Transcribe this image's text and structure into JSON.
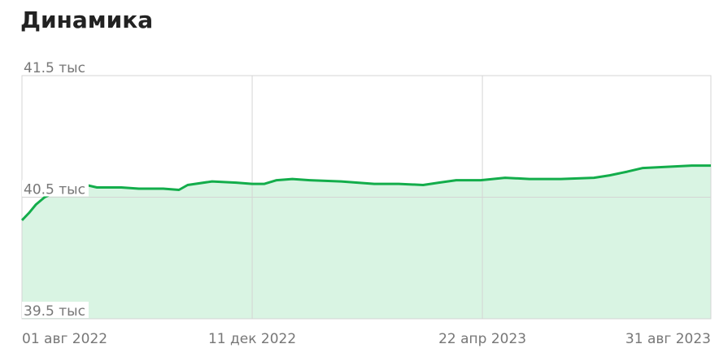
{
  "chart_data": {
    "type": "area",
    "title": "Динамика",
    "x": [
      "2022-08-01",
      "2022-08-05",
      "2022-08-09",
      "2022-08-14",
      "2022-08-23",
      "2022-09-04",
      "2022-09-13",
      "2022-09-27",
      "2022-10-07",
      "2022-10-21",
      "2022-10-30",
      "2022-11-04",
      "2022-11-18",
      "2022-12-02",
      "2022-12-11",
      "2022-12-18",
      "2022-12-25",
      "2023-01-03",
      "2023-01-13",
      "2023-01-31",
      "2023-02-19",
      "2023-03-05",
      "2023-03-19",
      "2023-03-28",
      "2023-04-07",
      "2023-04-21",
      "2023-05-05",
      "2023-05-19",
      "2023-06-06",
      "2023-06-25",
      "2023-07-04",
      "2023-07-14",
      "2023-07-23",
      "2023-08-06",
      "2023-08-20",
      "2023-08-31"
    ],
    "series": [
      {
        "color": "#13ad4b",
        "fill": "#d9f4e3",
        "values": [
          40.31,
          40.37,
          40.44,
          40.5,
          40.56,
          40.61,
          40.58,
          40.58,
          40.57,
          40.57,
          40.56,
          40.6,
          40.63,
          40.62,
          40.61,
          40.61,
          40.64,
          40.65,
          40.64,
          40.63,
          40.61,
          40.61,
          40.6,
          40.62,
          40.64,
          40.64,
          40.66,
          40.65,
          40.65,
          40.66,
          40.68,
          40.71,
          40.74,
          40.75,
          40.76,
          40.76
        ]
      }
    ],
    "xlim": [
      "2022-08-01",
      "2023-08-31"
    ],
    "xticks": [
      {
        "value": "2022-08-01",
        "label": "01 авг 2022"
      },
      {
        "value": "2022-12-11",
        "label": "11 дек 2022"
      },
      {
        "value": "2023-04-22",
        "label": "22 апр 2023"
      },
      {
        "value": "2023-08-31",
        "label": "31 авг 2023"
      }
    ],
    "ylim": [
      39.5,
      41.5
    ],
    "yticks": [
      {
        "value": 39.5,
        "label": "39.5 тыс"
      },
      {
        "value": 40.5,
        "label": "40.5 тыс"
      },
      {
        "value": 41.5,
        "label": "41.5 тыс"
      }
    ],
    "grid": true
  }
}
